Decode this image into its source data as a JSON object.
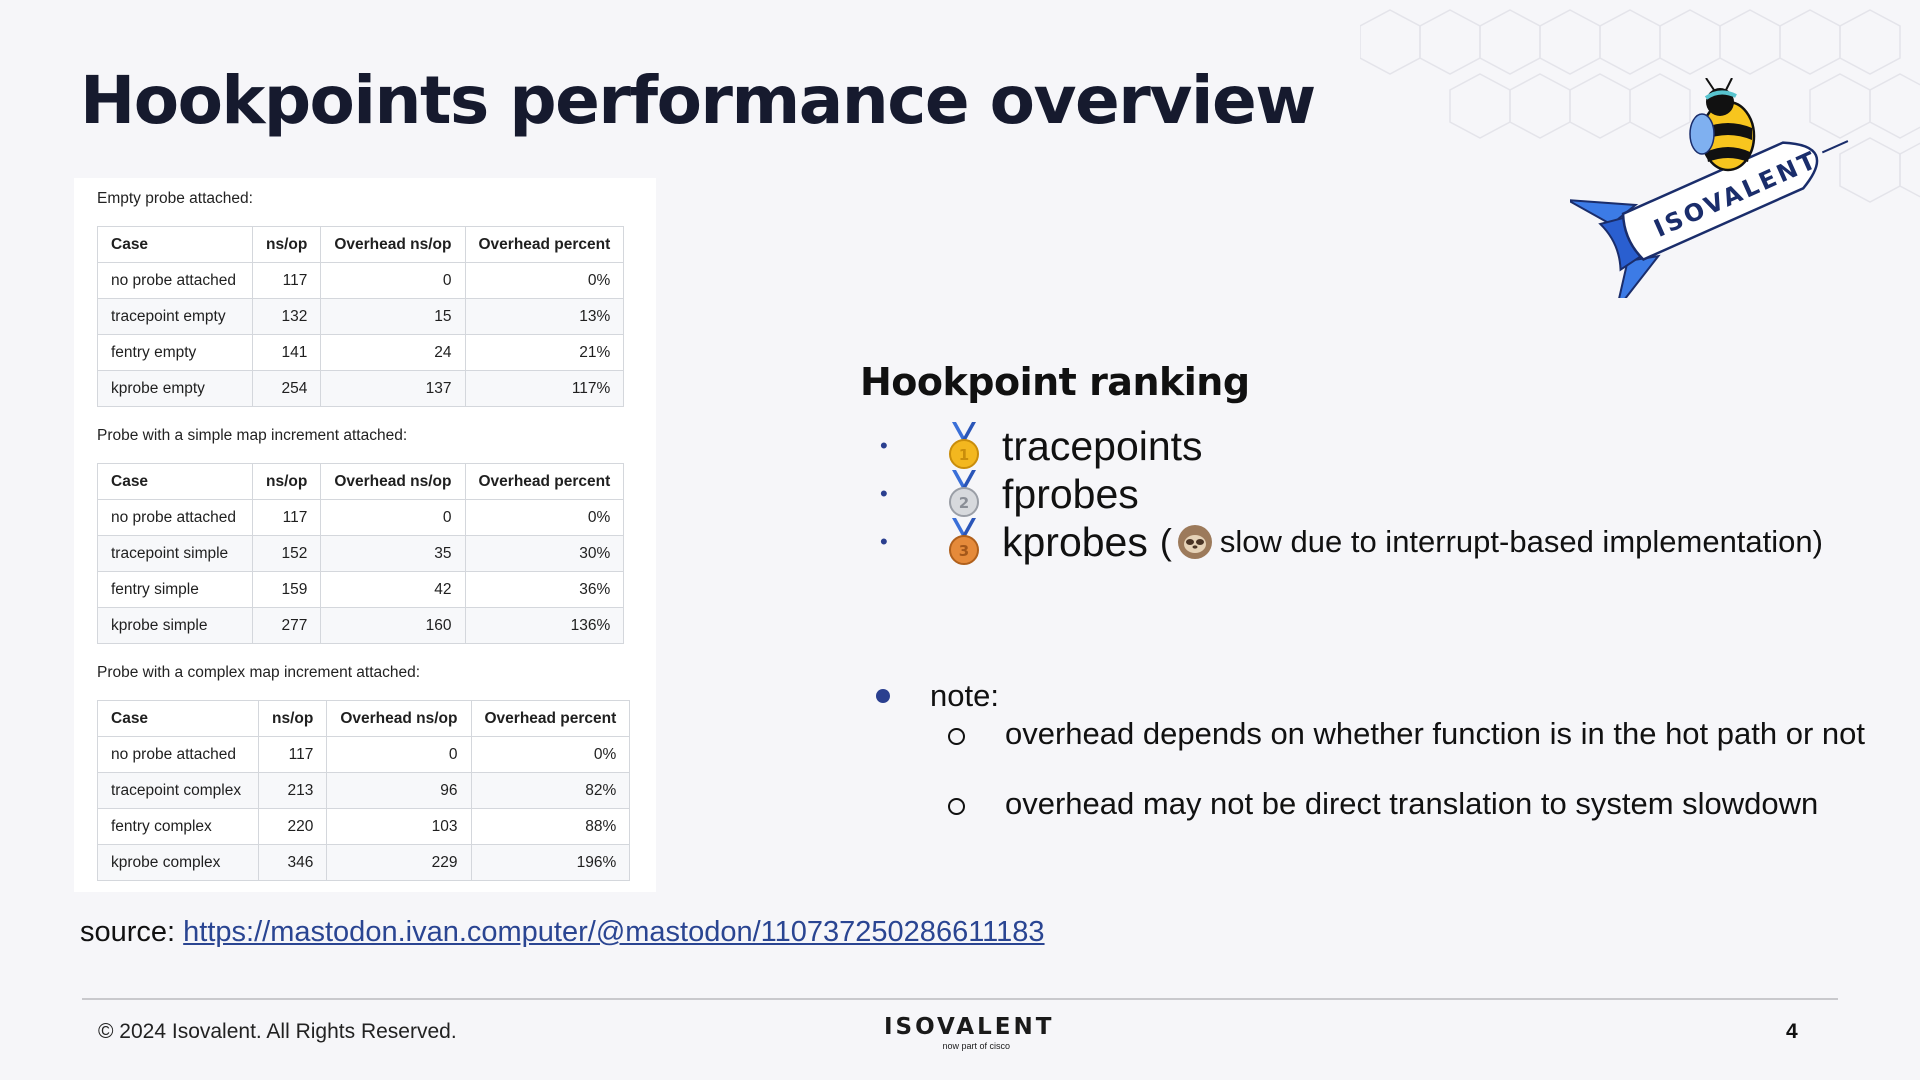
{
  "slide": {
    "title": "Hookpoints performance overview",
    "mascot_text": "ISOVALENT"
  },
  "tables": [
    {
      "caption": "Empty probe attached:",
      "headers": [
        "Case",
        "ns/op",
        "Overhead ns/op",
        "Overhead percent"
      ],
      "rows": [
        [
          "no probe attached",
          "117",
          "0",
          "0%"
        ],
        [
          "tracepoint empty",
          "132",
          "15",
          "13%"
        ],
        [
          "fentry empty",
          "141",
          "24",
          "21%"
        ],
        [
          "kprobe empty",
          "254",
          "137",
          "117%"
        ]
      ]
    },
    {
      "caption": "Probe with a simple map increment attached:",
      "headers": [
        "Case",
        "ns/op",
        "Overhead ns/op",
        "Overhead percent"
      ],
      "rows": [
        [
          "no probe attached",
          "117",
          "0",
          "0%"
        ],
        [
          "tracepoint simple",
          "152",
          "35",
          "30%"
        ],
        [
          "fentry simple",
          "159",
          "42",
          "36%"
        ],
        [
          "kprobe simple",
          "277",
          "160",
          "136%"
        ]
      ]
    },
    {
      "caption": "Probe with a complex map increment attached:",
      "headers": [
        "Case",
        "ns/op",
        "Overhead ns/op",
        "Overhead percent"
      ],
      "rows": [
        [
          "no probe attached",
          "117",
          "0",
          "0%"
        ],
        [
          "tracepoint complex",
          "213",
          "96",
          "82%"
        ],
        [
          "fentry complex",
          "220",
          "103",
          "88%"
        ],
        [
          "kprobe complex",
          "346",
          "229",
          "196%"
        ]
      ]
    }
  ],
  "ranking": {
    "title": "Hookpoint ranking",
    "items": [
      {
        "medal": "gold-medal-icon",
        "label": "tracepoints"
      },
      {
        "medal": "silver-medal-icon",
        "label": "fprobes"
      },
      {
        "medal": "bronze-medal-icon",
        "label": "kprobes",
        "note_open": "(",
        "note_icon": "sloth-icon",
        "note": "slow due to interrupt-based implementation)"
      }
    ]
  },
  "notes": {
    "label": "note:",
    "items": [
      "overhead depends on whether function is in the hot path or not",
      "overhead may not be direct translation to system slowdown"
    ]
  },
  "source": {
    "label": "source:",
    "url": "https://mastodon.ivan.computer/@mastodon/110737250286611183"
  },
  "footer": {
    "copyright": "© 2024 Isovalent. All Rights Reserved.",
    "logo_word": "ISOVALENT",
    "logo_sub": "now part of cisco",
    "page_number": "4"
  },
  "colors": {
    "background": "#f6f6f9",
    "title": "#161a2e",
    "accent_blue": "#2a3f8f",
    "link": "#2a4592"
  }
}
